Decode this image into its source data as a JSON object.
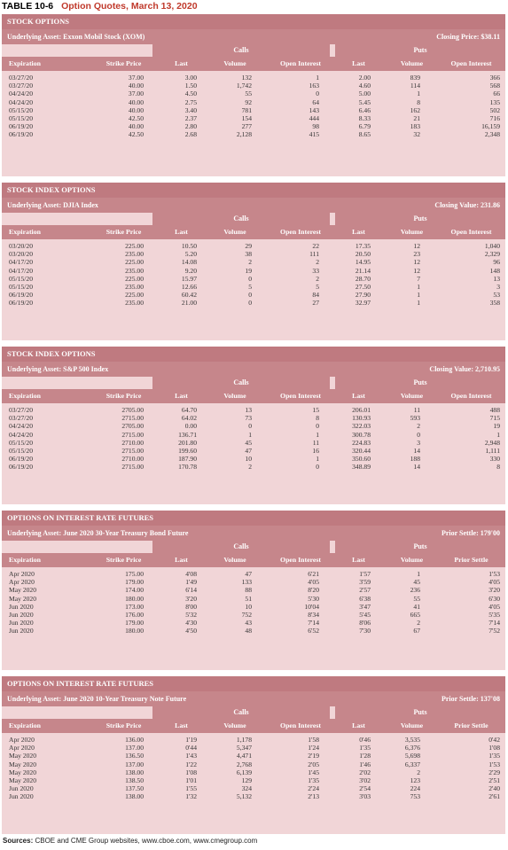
{
  "table_title": {
    "number": "TABLE 10-6",
    "text": "Option Quotes, March 13, 2020"
  },
  "sections": [
    {
      "title": "STOCK OPTIONS",
      "asset": "Underlying Asset: Exxon Mobil Stock (XOM)",
      "closing": "Closing Price: $38.11",
      "calls_label": "Calls",
      "puts_label": "Puts",
      "headers": [
        "Expiration",
        "Strike Price",
        "Last",
        "Volume",
        "Open Interest",
        "Last",
        "Volume",
        "Open Interest"
      ],
      "rows": [
        [
          "03/27/20",
          "37.00",
          "3.00",
          "132",
          "1",
          "2.00",
          "839",
          "366"
        ],
        [
          "03/27/20",
          "40.00",
          "1.50",
          "1,742",
          "163",
          "4.60",
          "114",
          "568"
        ],
        [
          "04/24/20",
          "37.00",
          "4.50",
          "55",
          "0",
          "5.00",
          "1",
          "66"
        ],
        [
          "04/24/20",
          "40.00",
          "2.75",
          "92",
          "64",
          "5.45",
          "8",
          "135"
        ],
        [
          "05/15/20",
          "40.00",
          "3.40",
          "781",
          "143",
          "6.46",
          "162",
          "502"
        ],
        [
          "05/15/20",
          "42.50",
          "2.37",
          "154",
          "444",
          "8.33",
          "21",
          "716"
        ],
        [
          "06/19/20",
          "40.00",
          "2.80",
          "277",
          "98",
          "6.79",
          "183",
          "16,159"
        ],
        [
          "06/19/20",
          "42.50",
          "2.68",
          "2,128",
          "415",
          "8.65",
          "32",
          "2,348"
        ]
      ]
    },
    {
      "title": "STOCK INDEX OPTIONS",
      "asset": "Underlying Asset: DJIA Index",
      "closing": "Closing Value: 231.86",
      "calls_label": "Calls",
      "puts_label": "Puts",
      "headers": [
        "Expiration",
        "Strike Price",
        "Last",
        "Volume",
        "Open Interest",
        "Last",
        "Volume",
        "Open Interest"
      ],
      "rows": [
        [
          "03/20/20",
          "225.00",
          "10.50",
          "29",
          "22",
          "17.35",
          "12",
          "1,040"
        ],
        [
          "03/20/20",
          "235.00",
          "5.20",
          "38",
          "111",
          "20.50",
          "23",
          "2,329"
        ],
        [
          "04/17/20",
          "225.00",
          "14.08",
          "2",
          "2",
          "14.95",
          "12",
          "96"
        ],
        [
          "04/17/20",
          "235.00",
          "9.20",
          "19",
          "33",
          "21.14",
          "12",
          "148"
        ],
        [
          "05/15/20",
          "225.00",
          "15.97",
          "0",
          "2",
          "28.70",
          "7",
          "13"
        ],
        [
          "05/15/20",
          "235.00",
          "12.66",
          "5",
          "5",
          "27.50",
          "1",
          "3"
        ],
        [
          "06/19/20",
          "225.00",
          "60.42",
          "0",
          "84",
          "27.90",
          "1",
          "53"
        ],
        [
          "06/19/20",
          "235.00",
          "21.00",
          "0",
          "27",
          "32.97",
          "1",
          "358"
        ]
      ]
    },
    {
      "title": "STOCK INDEX OPTIONS",
      "asset": "Underlying Asset: S&P 500 Index",
      "closing": "Closing Value: 2,710.95",
      "calls_label": "Calls",
      "puts_label": "Puts",
      "headers": [
        "Expiration",
        "Strike Price",
        "Last",
        "Volume",
        "Open Interest",
        "Last",
        "Volume",
        "Open Interest"
      ],
      "rows": [
        [
          "03/27/20",
          "2705.00",
          "64.70",
          "13",
          "15",
          "206.01",
          "11",
          "488"
        ],
        [
          "03/27/20",
          "2715.00",
          "64.02",
          "73",
          "8",
          "130.93",
          "593",
          "715"
        ],
        [
          "04/24/20",
          "2705.00",
          "0.00",
          "0",
          "0",
          "322.03",
          "2",
          "19"
        ],
        [
          "04/24/20",
          "2715.00",
          "136.71",
          "1",
          "1",
          "300.78",
          "0",
          "1"
        ],
        [
          "05/15/20",
          "2710.00",
          "201.80",
          "45",
          "11",
          "224.83",
          "3",
          "2,948"
        ],
        [
          "05/15/20",
          "2715.00",
          "199.60",
          "47",
          "16",
          "320.44",
          "14",
          "1,111"
        ],
        [
          "06/19/20",
          "2710.00",
          "187.90",
          "10",
          "1",
          "350.60",
          "188",
          "330"
        ],
        [
          "06/19/20",
          "2715.00",
          "170.78",
          "2",
          "0",
          "348.89",
          "14",
          "8"
        ]
      ]
    },
    {
      "title": "OPTIONS ON INTEREST RATE FUTURES",
      "asset": "Underlying Asset: June 2020 30-Year Treasury Bond Future",
      "closing": "Prior Settle: 179'00",
      "calls_label": "Calls",
      "puts_label": "Puts",
      "headers": [
        "Expiration",
        "Strike Price",
        "Last",
        "Volume",
        "Open Interest",
        "Last",
        "Volume",
        "Prior Settle"
      ],
      "rows": [
        [
          "Apr 2020",
          "175.00",
          "4'08",
          "47",
          "6'21",
          "1'57",
          "1",
          "1'53"
        ],
        [
          "Apr 2020",
          "179.00",
          "1'49",
          "133",
          "4'05",
          "3'59",
          "45",
          "4'05"
        ],
        [
          "May 2020",
          "174.00",
          "6'14",
          "88",
          "8'20",
          "2'57",
          "236",
          "3'20"
        ],
        [
          "May 2020",
          "180.00",
          "3'20",
          "51",
          "5'30",
          "6'38",
          "55",
          "6'30"
        ],
        [
          "Jun 2020",
          "173.00",
          "8'00",
          "10",
          "10'04",
          "3'47",
          "41",
          "4'05"
        ],
        [
          "Jun 2020",
          "176.00",
          "5'32",
          "752",
          "8'34",
          "5'45",
          "665",
          "5'35"
        ],
        [
          "Jun 2020",
          "179.00",
          "4'30",
          "43",
          "7'14",
          "8'06",
          "2",
          "7'14"
        ],
        [
          "Jun 2020",
          "180.00",
          "4'50",
          "48",
          "6'52",
          "7'30",
          "67",
          "7'52"
        ]
      ]
    },
    {
      "title": "OPTIONS ON INTEREST RATE FUTURES",
      "asset": "Underlying Asset: June 2020 10-Year Treasury Note Future",
      "closing": "Prior Settle: 137'08",
      "calls_label": "Calls",
      "puts_label": "Puts",
      "headers": [
        "Expiration",
        "Strike Price",
        "Last",
        "Volume",
        "Open Interest",
        "Last",
        "Volume",
        "Prior Settle"
      ],
      "rows": [
        [
          "Apr 2020",
          "136.00",
          "1'19",
          "1,178",
          "1'58",
          "0'46",
          "3,535",
          "0'42"
        ],
        [
          "Apr 2020",
          "137.00",
          "0'44",
          "5,347",
          "1'24",
          "1'35",
          "6,376",
          "1'08"
        ],
        [
          "May 2020",
          "136.50",
          "1'43",
          "4,471",
          "2'19",
          "1'28",
          "5,698",
          "1'35"
        ],
        [
          "May 2020",
          "137.00",
          "1'22",
          "2,768",
          "2'05",
          "1'46",
          "6,337",
          "1'53"
        ],
        [
          "May 2020",
          "138.00",
          "1'08",
          "6,139",
          "1'45",
          "2'02",
          "2",
          "2'29"
        ],
        [
          "May 2020",
          "138.50",
          "1'01",
          "129",
          "1'35",
          "3'02",
          "123",
          "2'51"
        ],
        [
          "Jun 2020",
          "137.50",
          "1'55",
          "324",
          "2'24",
          "2'54",
          "224",
          "2'40"
        ],
        [
          "Jun 2020",
          "138.00",
          "1'32",
          "5,132",
          "2'13",
          "3'03",
          "753",
          "2'61"
        ]
      ]
    }
  ],
  "sources": {
    "label": "Sources:",
    "text": "CBOE and CME Group websites, www.cboe.com, www.cmegroup.com"
  }
}
